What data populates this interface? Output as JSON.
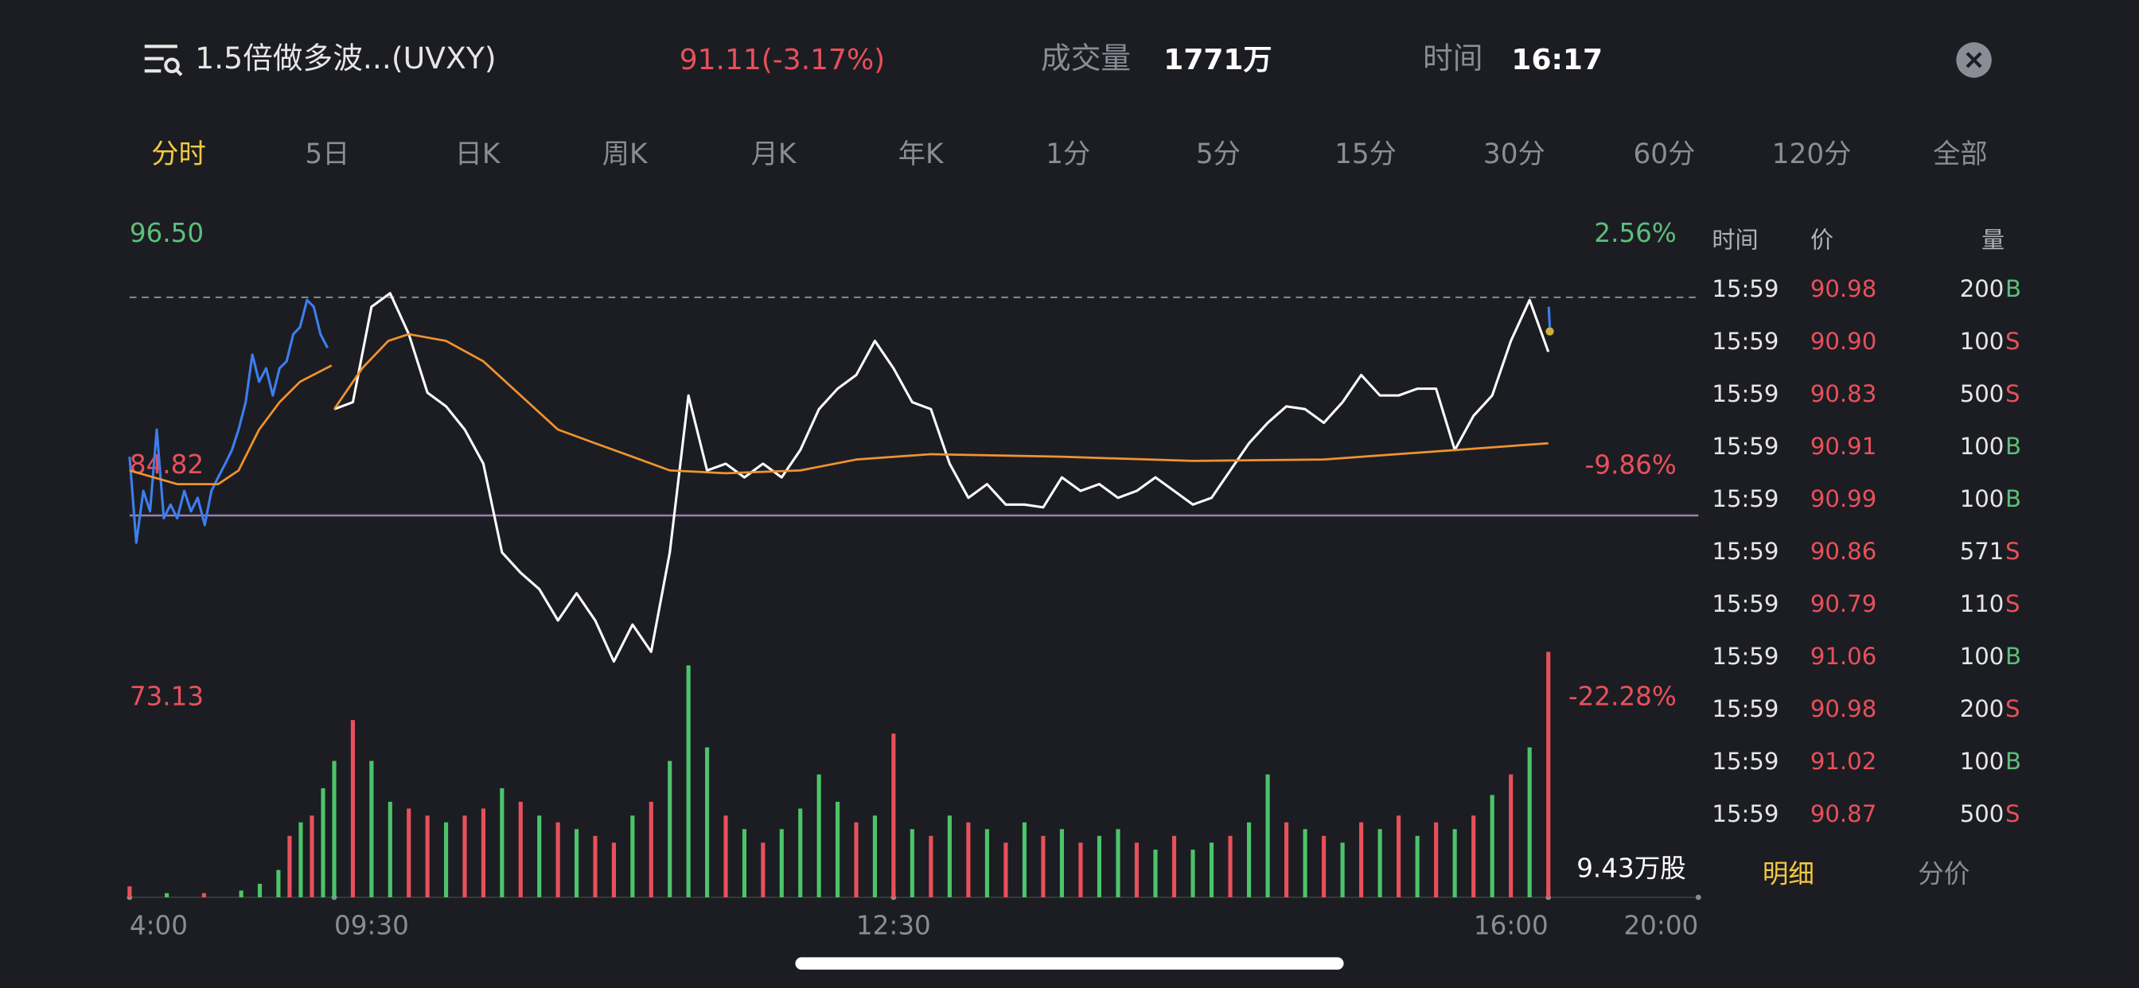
{
  "header": {
    "title": "1.5倍做多波...(UVXY)",
    "quote": "91.11(-3.17%)",
    "volume_label": "成交量",
    "volume": "1771万",
    "time_label": "时间",
    "time": "16:17"
  },
  "tabs": [
    "分时",
    "5日",
    "日K",
    "周K",
    "月K",
    "年K",
    "1分",
    "5分",
    "15分",
    "30分",
    "60分",
    "120分",
    "全部"
  ],
  "selected_tab": 0,
  "chart_data": [
    {
      "type": "line",
      "ylim": [
        73.13,
        96.5
      ],
      "yticks": [
        {
          "value": 96.5,
          "label": "96.50"
        },
        84.82,
        73.13
      ],
      "y2lim": [
        -22.28,
        2.56
      ],
      "y2ticks": [
        {
          "value": 2.56,
          "label": "2.56%"
        },
        {
          "value": -9.86,
          "label": "-9.86%"
        },
        {
          "value": -22.28,
          "label": "-22.28%"
        }
      ],
      "xlim": [
        4,
        20
      ],
      "xticks": [
        {
          "value": 4,
          "label": "4:00"
        },
        {
          "value": 9.5,
          "label": "09:30"
        },
        {
          "value": 12.5,
          "label": "12:30"
        },
        {
          "value": 16,
          "label": "16:00"
        },
        {
          "value": 20,
          "label": "20:00"
        }
      ],
      "up_color": "#5dbf7a",
      "down_color": "#e8505b",
      "series": [
        {
          "color": "#3d7ef0",
          "x": [
            4.0,
            4.18,
            4.37,
            4.55,
            4.73,
            4.92,
            5.1,
            5.28,
            5.47,
            5.65,
            5.83,
            6.02,
            6.2,
            6.38,
            6.57,
            6.75,
            6.93,
            7.12,
            7.3,
            7.48,
            7.67,
            7.85,
            8.03,
            8.22,
            8.4,
            8.58,
            8.77,
            8.95,
            9.13,
            9.32
          ],
          "values": [
            85.3,
            80.97,
            83.58,
            82.55,
            86.67,
            82.2,
            82.89,
            82.2,
            83.58,
            82.55,
            83.23,
            81.86,
            83.58,
            84.26,
            84.95,
            85.64,
            86.67,
            88.05,
            90.45,
            89.08,
            89.76,
            88.39,
            89.76,
            90.11,
            91.48,
            91.83,
            93.2,
            92.86,
            91.48,
            90.79
          ]
        },
        {
          "color": "#ffffff",
          "x": [
            9.5,
            9.6,
            9.7,
            9.8,
            9.9,
            10.0,
            10.1,
            10.2,
            10.3,
            10.4,
            10.5,
            10.6,
            10.7,
            10.8,
            10.9,
            11.0,
            11.1,
            11.2,
            11.3,
            11.4,
            11.5,
            11.6,
            11.7,
            11.8,
            11.9,
            12.0,
            12.1,
            12.2,
            12.3,
            12.4,
            12.5,
            12.6,
            12.7,
            12.8,
            12.9,
            13.0,
            13.1,
            13.2,
            13.3,
            13.4,
            13.5,
            13.6,
            13.7,
            13.8,
            13.9,
            14.0,
            14.1,
            14.2,
            14.3,
            14.4,
            14.5,
            14.6,
            14.7,
            14.8,
            14.9,
            15.0,
            15.1,
            15.2,
            15.3,
            15.4,
            15.5,
            15.6,
            15.7,
            15.8,
            15.9,
            16.0
          ],
          "values": [
            87.7,
            88.05,
            92.86,
            93.54,
            91.48,
            88.53,
            87.84,
            86.67,
            84.95,
            80.48,
            79.45,
            78.63,
            77.05,
            78.42,
            77.05,
            74.98,
            76.84,
            75.47,
            80.48,
            88.39,
            84.61,
            84.95,
            84.26,
            84.95,
            84.26,
            85.64,
            87.7,
            88.73,
            89.42,
            91.14,
            89.76,
            88.05,
            87.7,
            84.95,
            83.23,
            83.92,
            82.89,
            82.89,
            82.75,
            84.26,
            83.58,
            83.92,
            83.23,
            83.58,
            84.26,
            83.58,
            82.89,
            83.23,
            84.61,
            85.98,
            87.01,
            87.84,
            87.7,
            87.01,
            88.05,
            89.42,
            88.39,
            88.39,
            88.73,
            88.73,
            85.64,
            87.36,
            88.39,
            91.14,
            93.2,
            90.59
          ]
        },
        {
          "color": "#3d7ef0",
          "x": [
            16.01,
            16.04
          ],
          "values": [
            92.86,
            91.83
          ]
        },
        {
          "color": "#f0932f",
          "x": [
            4.0,
            5.28,
            6.38,
            6.93,
            7.48,
            8.03,
            8.58,
            9.43,
            9.47,
            9.5,
            9.65,
            9.79,
            9.9,
            10.1,
            10.3,
            10.5,
            10.7,
            10.9,
            11.1,
            11.3,
            11.6,
            12.0,
            12.3,
            12.7,
            13.4,
            14.1,
            14.8,
            15.5,
            16.0
          ],
          "values": [
            84.61,
            83.92,
            83.92,
            84.61,
            86.67,
            88.05,
            89.08,
            89.9,
            null,
            87.7,
            89.76,
            91.14,
            91.48,
            91.14,
            90.11,
            88.39,
            86.67,
            85.98,
            85.3,
            84.61,
            84.47,
            84.61,
            85.16,
            85.43,
            85.3,
            85.09,
            85.16,
            85.64,
            85.98
          ]
        }
      ]
    },
    {
      "type": "bar",
      "ylim": [
        0,
        94300
      ],
      "xlim": [
        4,
        20
      ],
      "annotation": "9.43万股",
      "series": [
        {
          "color": "#4cc46a",
          "x": [
            5.0,
            7.0,
            7.5,
            8.0,
            8.6,
            9.2,
            9.5,
            9.7,
            9.8,
            10.1,
            10.4,
            10.6,
            10.8,
            11.1,
            11.3,
            11.4,
            11.5,
            11.7,
            11.9,
            12.0,
            12.1,
            12.2,
            12.4,
            12.6,
            12.8,
            13.0,
            13.2,
            13.4,
            13.6,
            13.7,
            13.9,
            14.1,
            14.2,
            14.4,
            14.5,
            14.7,
            14.9,
            15.1,
            15.3,
            15.5,
            15.7,
            15.9
          ],
          "values": [
            1600,
            2600,
            5200,
            10500,
            28800,
            41900,
            52400,
            52400,
            36700,
            28800,
            41900,
            31400,
            26200,
            31400,
            52400,
            89100,
            57600,
            26200,
            26200,
            34100,
            47200,
            36700,
            31400,
            26200,
            31400,
            26200,
            28800,
            26200,
            23600,
            26200,
            18300,
            18300,
            21000,
            28800,
            47200,
            26200,
            21000,
            26200,
            23600,
            26200,
            39300,
            57600
          ]
        },
        {
          "color": "#e8505b",
          "x": [
            4.0,
            6.0,
            8.3,
            8.9,
            9.6,
            9.9,
            10.0,
            10.2,
            10.3,
            10.5,
            10.7,
            10.9,
            11.0,
            11.2,
            11.6,
            11.8,
            12.3,
            12.5,
            12.7,
            12.9,
            13.1,
            13.3,
            13.5,
            13.8,
            14.0,
            14.3,
            14.6,
            14.8,
            15.0,
            15.2,
            15.4,
            15.6,
            15.8,
            16.0
          ],
          "values": [
            4200,
            1600,
            23600,
            31400,
            68100,
            34100,
            31400,
            31400,
            34100,
            36700,
            28800,
            23600,
            21000,
            36700,
            31400,
            21000,
            28800,
            62900,
            23600,
            28800,
            21000,
            23600,
            21000,
            21000,
            23600,
            23600,
            28800,
            23600,
            28800,
            31400,
            28800,
            31400,
            47200,
            94300
          ]
        }
      ]
    }
  ],
  "trades": {
    "columns": [
      "时间",
      "价",
      "量"
    ],
    "rows": [
      [
        "15:59",
        "90.98",
        "200",
        "B"
      ],
      [
        "15:59",
        "90.90",
        "100",
        "S"
      ],
      [
        "15:59",
        "90.83",
        "500",
        "S"
      ],
      [
        "15:59",
        "90.91",
        "100",
        "B"
      ],
      [
        "15:59",
        "90.99",
        "100",
        "B"
      ],
      [
        "15:59",
        "90.86",
        "571",
        "S"
      ],
      [
        "15:59",
        "90.79",
        "110",
        "S"
      ],
      [
        "15:59",
        "91.06",
        "100",
        "B"
      ],
      [
        "15:59",
        "90.98",
        "200",
        "S"
      ],
      [
        "15:59",
        "91.02",
        "100",
        "B"
      ],
      [
        "15:59",
        "90.87",
        "500",
        "S"
      ]
    ]
  },
  "bottom_tabs": [
    "明细",
    "分价"
  ],
  "selected_bottom_tab": 0
}
